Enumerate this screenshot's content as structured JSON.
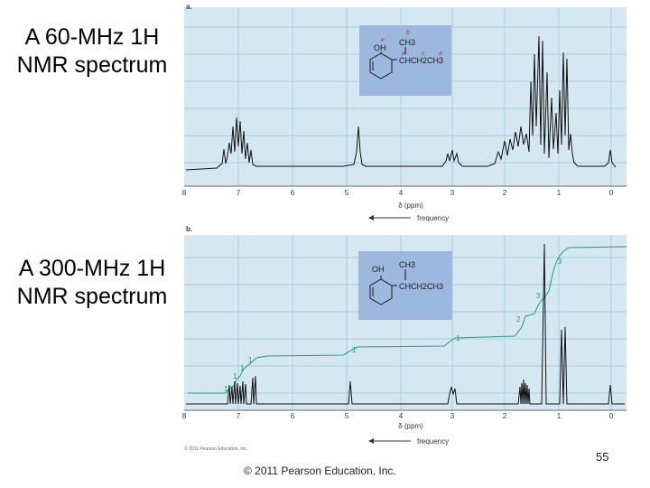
{
  "slide": {
    "label_a_line1": "A 60-MHz 1H",
    "label_a_line2": "NMR spectrum",
    "label_b_line1": "A 300-MHz 1H",
    "label_b_line2": "NMR spectrum",
    "copyright": "© 2011 Pearson Education, Inc.",
    "page_number": "55"
  },
  "spectrum_a": {
    "panel_letter": "a.",
    "axis_ticks": [
      "8",
      "7",
      "6",
      "5",
      "4",
      "3",
      "2",
      "1",
      "0"
    ],
    "axis_label": "δ (ppm)",
    "direction_label": "frequency",
    "structure": {
      "oh": "OH",
      "ch3": "CH3",
      "chain": "CHCH2CH3",
      "letters": [
        "e",
        "b",
        "d",
        "c",
        "a"
      ]
    }
  },
  "spectrum_b": {
    "panel_letter": "b.",
    "axis_ticks": [
      "8",
      "7",
      "6",
      "5",
      "4",
      "3",
      "2",
      "1",
      "0"
    ],
    "axis_label": "δ (ppm)",
    "direction_label": "frequency",
    "publisher_mark": "© 2011 Pearson Education, Inc.",
    "integrals": [
      "1",
      "1",
      "1",
      "1",
      "1",
      "1",
      "2",
      "3",
      "3"
    ],
    "structure": {
      "oh": "OH",
      "ch3": "CH3",
      "chain": "CHCH2CH3"
    }
  },
  "colors": {
    "spectrum_bg": "#d5e8f2",
    "grid": "#a9cddf",
    "structure_bg": "#9db8de",
    "integral": "#1d9c7a",
    "label_red": "#c0392b"
  }
}
